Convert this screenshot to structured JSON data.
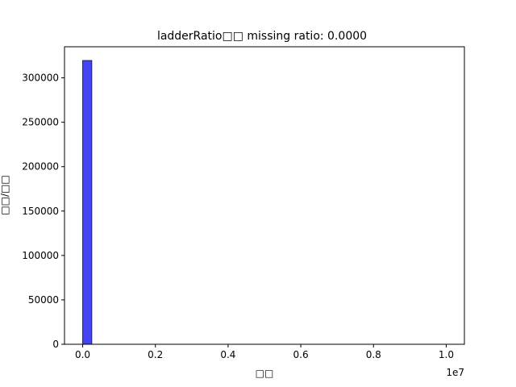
{
  "chart_data": {
    "type": "bar",
    "title": "ladderRatio□□  missing ratio: 0.0000",
    "xlabel": "□□",
    "ylabel": "□□/□□",
    "x_offset_label": "1e7",
    "xlim": [
      -500000,
      10500000
    ],
    "ylim": [
      0,
      335000
    ],
    "x_ticks": [
      0,
      2000000,
      4000000,
      6000000,
      8000000,
      10000000
    ],
    "x_tick_labels": [
      "0.0",
      "0.2",
      "0.4",
      "0.6",
      "0.8",
      "1.0"
    ],
    "y_ticks": [
      0,
      50000,
      100000,
      150000,
      200000,
      250000,
      300000
    ],
    "y_tick_labels": [
      "0",
      "50000",
      "100000",
      "150000",
      "200000",
      "250000",
      "300000"
    ],
    "bin_width": 250000,
    "bins": [
      {
        "start": 0,
        "value": 319500
      }
    ],
    "colors": {
      "bar_fill": "#4444f2",
      "bar_stroke": "#222266"
    }
  }
}
